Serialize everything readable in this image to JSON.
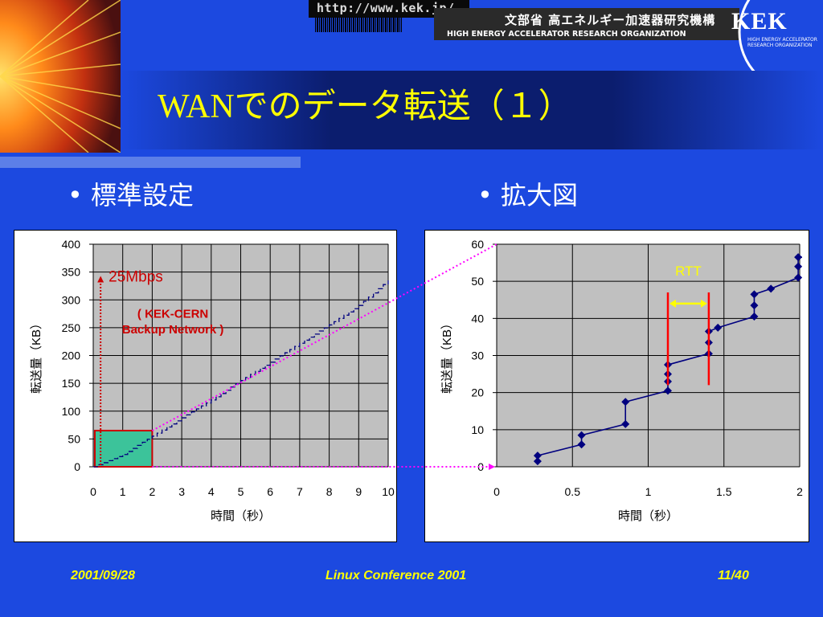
{
  "header": {
    "url": "http://www.kek.jp/",
    "org_jp": "文部省 高エネルギー加速器研究機構",
    "org_en": "HIGH ENERGY ACCELERATOR RESEARCH ORGANIZATION",
    "logo": "KEK",
    "logo_sub": "HIGH ENERGY ACCELERATOR RESEARCH ORGANIZATION"
  },
  "title": "WANでのデータ転送（１）",
  "bullets": {
    "left": "標準設定",
    "right": "拡大図"
  },
  "chart_data": [
    {
      "type": "line",
      "xlabel": "時間（秒）",
      "ylabel": "転送量（KB）",
      "xlim": [
        0,
        10
      ],
      "ylim": [
        0,
        400
      ],
      "x_ticks": [
        "0",
        "1",
        "2",
        "3",
        "4",
        "5",
        "6",
        "7",
        "8",
        "9",
        "10"
      ],
      "y_ticks": [
        "0",
        "50",
        "100",
        "150",
        "200",
        "250",
        "300",
        "350",
        "400"
      ],
      "grid": true,
      "series": [
        {
          "x": [
            0,
            1,
            2,
            3,
            4,
            5,
            6,
            7,
            8,
            9,
            10
          ],
          "values": [
            0,
            22,
            55,
            88,
            120,
            155,
            188,
            222,
            255,
            290,
            335
          ]
        }
      ],
      "annotations": {
        "rate": "25Mbps",
        "network_line1": "( KEK-CERN",
        "network_line2": "Backup Network )",
        "highlight_x": [
          0,
          2
        ],
        "highlight_y": [
          0,
          65
        ]
      }
    },
    {
      "type": "line",
      "xlabel": "時間（秒）",
      "ylabel": "転送量（KB）",
      "xlim": [
        0,
        2
      ],
      "ylim": [
        0,
        60
      ],
      "x_ticks": [
        "0",
        "0.5",
        "1",
        "1.5",
        "2"
      ],
      "y_ticks": [
        "0",
        "10",
        "20",
        "30",
        "40",
        "50",
        "60"
      ],
      "grid": true,
      "series": [
        {
          "x": [
            0.27,
            0.27,
            0.56,
            0.56,
            0.85,
            0.85,
            1.13,
            1.13,
            1.13,
            1.13,
            1.4,
            1.4,
            1.4,
            1.46,
            1.7,
            1.7,
            1.7,
            1.81,
            1.99,
            1.99,
            1.99,
            2.03
          ],
          "values": [
            1.5,
            3,
            6,
            8.5,
            11.5,
            17.5,
            20.5,
            23,
            25,
            27.5,
            30.5,
            33.5,
            36.5,
            37.5,
            40.5,
            43.5,
            46.5,
            48,
            51,
            54,
            56.5,
            56.5
          ]
        }
      ],
      "annotations": {
        "rtt": "RTT",
        "rtt_x": [
          1.13,
          1.4
        ],
        "rtt_y": [
          22,
          47
        ]
      }
    }
  ],
  "footer": {
    "date": "2001/09/28",
    "event": "Linux Conference 2001",
    "page": "11/40"
  },
  "colors": {
    "bg": "#1c49e0",
    "title": "#ffff00",
    "series": "#00007f",
    "plot_bg": "#c0c0c0",
    "highlight": "#3cc39a",
    "annotation": "#cc0000",
    "connector": "#ff00ff"
  }
}
